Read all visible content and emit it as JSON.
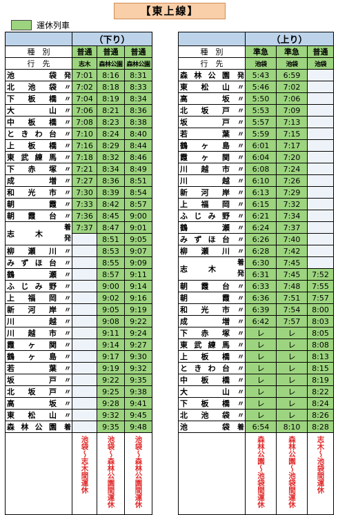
{
  "title": "【東上線】",
  "legend": {
    "label": "運休列車",
    "color": "#9dd47f"
  },
  "down": {
    "header": "（下り）",
    "row_labels": [
      "種　別",
      "行　先"
    ],
    "trains": [
      {
        "type": "普通",
        "dest": "志木"
      },
      {
        "type": "普通",
        "dest": "森林公園"
      },
      {
        "type": "普通",
        "dest": "森林公園"
      }
    ],
    "rows": [
      {
        "station": "池袋",
        "mark": "発",
        "times": [
          "7:01",
          "8:16",
          "8:31"
        ],
        "green": [
          true,
          true,
          true
        ]
      },
      {
        "station": "北池袋",
        "mark": "〃",
        "times": [
          "7:02",
          "8:18",
          "8:33"
        ],
        "green": [
          true,
          true,
          true
        ]
      },
      {
        "station": "下板橋",
        "mark": "〃",
        "times": [
          "7:04",
          "8:19",
          "8:34"
        ],
        "green": [
          true,
          true,
          true
        ]
      },
      {
        "station": "大山",
        "mark": "〃",
        "times": [
          "7:06",
          "8:21",
          "8:36"
        ],
        "green": [
          true,
          true,
          true
        ]
      },
      {
        "station": "中板橋",
        "mark": "〃",
        "times": [
          "7:08",
          "8:23",
          "8:38"
        ],
        "green": [
          true,
          true,
          true
        ]
      },
      {
        "station": "ときわ台",
        "mark": "〃",
        "times": [
          "7:10",
          "8:24",
          "8:40"
        ],
        "green": [
          true,
          true,
          true
        ]
      },
      {
        "station": "上板橋",
        "mark": "〃",
        "times": [
          "7:16",
          "8:29",
          "8:44"
        ],
        "green": [
          true,
          true,
          true
        ]
      },
      {
        "station": "東武練馬",
        "mark": "〃",
        "times": [
          "7:18",
          "8:32",
          "8:46"
        ],
        "green": [
          true,
          true,
          true
        ]
      },
      {
        "station": "下赤塚",
        "mark": "〃",
        "times": [
          "7:21",
          "8:34",
          "8:49"
        ],
        "green": [
          true,
          true,
          true
        ]
      },
      {
        "station": "成増",
        "mark": "〃",
        "times": [
          "7:27",
          "8:36",
          "8:51"
        ],
        "green": [
          true,
          true,
          true
        ]
      },
      {
        "station": "和光市",
        "mark": "〃",
        "times": [
          "7:30",
          "8:39",
          "8:54"
        ],
        "green": [
          true,
          true,
          true
        ]
      },
      {
        "station": "朝霞",
        "mark": "〃",
        "times": [
          "7:33",
          "8:42",
          "8:57"
        ],
        "green": [
          true,
          true,
          true
        ]
      },
      {
        "station": "朝霞台",
        "mark": "〃",
        "times": [
          "7:36",
          "8:45",
          "9:00"
        ],
        "green": [
          true,
          true,
          true
        ]
      }
    ],
    "shiki": {
      "station": "志木",
      "arr_mark": "着",
      "dep_mark": "発",
      "arr": [
        "7:37",
        "8:47",
        "9:01"
      ],
      "dep": [
        "",
        "8:51",
        "9:05"
      ]
    },
    "rows_after": [
      {
        "station": "柳瀬川",
        "mark": "〃",
        "times": [
          "",
          "8:53",
          "9:07"
        ],
        "green": [
          false,
          true,
          true
        ]
      },
      {
        "station": "みずほ台",
        "mark": "〃",
        "times": [
          "",
          "8:55",
          "9:09"
        ],
        "green": [
          false,
          true,
          true
        ]
      },
      {
        "station": "鶴瀬",
        "mark": "〃",
        "times": [
          "",
          "8:57",
          "9:11"
        ],
        "green": [
          false,
          true,
          true
        ]
      },
      {
        "station": "ふじみ野",
        "mark": "〃",
        "times": [
          "",
          "9:00",
          "9:14"
        ],
        "green": [
          false,
          true,
          true
        ]
      },
      {
        "station": "上福岡",
        "mark": "〃",
        "times": [
          "",
          "9:02",
          "9:16"
        ],
        "green": [
          false,
          true,
          true
        ]
      },
      {
        "station": "新河岸",
        "mark": "〃",
        "times": [
          "",
          "9:05",
          "9:19"
        ],
        "green": [
          false,
          true,
          true
        ]
      },
      {
        "station": "川越",
        "mark": "〃",
        "times": [
          "",
          "9:08",
          "9:22"
        ],
        "green": [
          false,
          true,
          true
        ]
      },
      {
        "station": "川越市",
        "mark": "〃",
        "times": [
          "",
          "9:11",
          "9:24"
        ],
        "green": [
          false,
          true,
          true
        ]
      },
      {
        "station": "霞ヶ関",
        "mark": "〃",
        "times": [
          "",
          "9:14",
          "9:27"
        ],
        "green": [
          false,
          true,
          true
        ]
      },
      {
        "station": "鶴ヶ島",
        "mark": "〃",
        "times": [
          "",
          "9:17",
          "9:30"
        ],
        "green": [
          false,
          true,
          true
        ]
      },
      {
        "station": "若葉",
        "mark": "〃",
        "times": [
          "",
          "9:19",
          "9:32"
        ],
        "green": [
          false,
          true,
          true
        ]
      },
      {
        "station": "坂戸",
        "mark": "〃",
        "times": [
          "",
          "9:22",
          "9:35"
        ],
        "green": [
          false,
          true,
          true
        ]
      },
      {
        "station": "北坂戸",
        "mark": "〃",
        "times": [
          "",
          "9:25",
          "9:38"
        ],
        "green": [
          false,
          true,
          true
        ]
      },
      {
        "station": "高坂",
        "mark": "〃",
        "times": [
          "",
          "9:28",
          "9:41"
        ],
        "green": [
          false,
          true,
          true
        ]
      },
      {
        "station": "東松山",
        "mark": "〃",
        "times": [
          "",
          "9:32",
          "9:45"
        ],
        "green": [
          false,
          true,
          true
        ]
      },
      {
        "station": "森林公園",
        "mark": "着",
        "times": [
          "",
          "9:35",
          "9:48"
        ],
        "green": [
          false,
          true,
          true
        ]
      }
    ],
    "notes": [
      "池袋～志木間運休",
      "池袋～森林公園間運休",
      "池袋～森林公園間運休"
    ]
  },
  "up": {
    "header": "（上り）",
    "row_labels": [
      "種　別",
      "行　先"
    ],
    "trains": [
      {
        "type": "準急",
        "dest": "池袋"
      },
      {
        "type": "準急",
        "dest": "池袋"
      },
      {
        "type": "普通",
        "dest": "池袋"
      }
    ],
    "rows": [
      {
        "station": "森林公園",
        "mark": "発",
        "times": [
          "5:43",
          "6:59",
          ""
        ],
        "green": [
          true,
          true,
          false
        ]
      },
      {
        "station": "東松山",
        "mark": "〃",
        "times": [
          "5:46",
          "7:02",
          ""
        ],
        "green": [
          true,
          true,
          false
        ]
      },
      {
        "station": "高坂",
        "mark": "〃",
        "times": [
          "5:50",
          "7:06",
          ""
        ],
        "green": [
          true,
          true,
          false
        ]
      },
      {
        "station": "北坂戸",
        "mark": "〃",
        "times": [
          "5:53",
          "7:09",
          ""
        ],
        "green": [
          true,
          true,
          false
        ]
      },
      {
        "station": "坂戸",
        "mark": "〃",
        "times": [
          "5:57",
          "7:13",
          ""
        ],
        "green": [
          true,
          true,
          false
        ]
      },
      {
        "station": "若葉",
        "mark": "〃",
        "times": [
          "5:59",
          "7:15",
          ""
        ],
        "green": [
          true,
          true,
          false
        ]
      },
      {
        "station": "鶴ヶ島",
        "mark": "〃",
        "times": [
          "6:01",
          "7:17",
          ""
        ],
        "green": [
          true,
          true,
          false
        ]
      },
      {
        "station": "霞ヶ関",
        "mark": "〃",
        "times": [
          "6:04",
          "7:20",
          ""
        ],
        "green": [
          true,
          true,
          false
        ]
      },
      {
        "station": "川越市",
        "mark": "〃",
        "times": [
          "6:08",
          "7:24",
          ""
        ],
        "green": [
          true,
          true,
          false
        ]
      },
      {
        "station": "川越",
        "mark": "〃",
        "times": [
          "6:10",
          "7:26",
          ""
        ],
        "green": [
          true,
          true,
          false
        ]
      },
      {
        "station": "新河岸",
        "mark": "〃",
        "times": [
          "6:13",
          "7:29",
          ""
        ],
        "green": [
          true,
          true,
          false
        ]
      },
      {
        "station": "上福岡",
        "mark": "〃",
        "times": [
          "6:15",
          "7:32",
          ""
        ],
        "green": [
          true,
          true,
          false
        ]
      },
      {
        "station": "ふじみ野",
        "mark": "〃",
        "times": [
          "6:21",
          "7:34",
          ""
        ],
        "green": [
          true,
          true,
          false
        ]
      },
      {
        "station": "鶴瀬",
        "mark": "〃",
        "times": [
          "6:24",
          "7:37",
          ""
        ],
        "green": [
          true,
          true,
          false
        ]
      },
      {
        "station": "みずほ台",
        "mark": "〃",
        "times": [
          "6:26",
          "7:40",
          ""
        ],
        "green": [
          true,
          true,
          false
        ]
      },
      {
        "station": "柳瀬川",
        "mark": "〃",
        "times": [
          "6:28",
          "7:42",
          ""
        ],
        "green": [
          true,
          true,
          false
        ]
      }
    ],
    "shiki": {
      "station": "志木",
      "arr_mark": "着",
      "dep_mark": "発",
      "arr": [
        "6:30",
        "7:45",
        ""
      ],
      "dep": [
        "6:31",
        "7:45",
        "7:52"
      ]
    },
    "rows_after": [
      {
        "station": "朝霞台",
        "mark": "〃",
        "times": [
          "6:33",
          "7:48",
          "7:55"
        ],
        "green": [
          true,
          true,
          true
        ]
      },
      {
        "station": "朝霞",
        "mark": "〃",
        "times": [
          "6:36",
          "7:51",
          "7:57"
        ],
        "green": [
          true,
          true,
          true
        ]
      },
      {
        "station": "和光市",
        "mark": "〃",
        "times": [
          "6:39",
          "7:54",
          "8:00"
        ],
        "green": [
          true,
          true,
          true
        ]
      },
      {
        "station": "成増",
        "mark": "〃",
        "times": [
          "6:42",
          "7:57",
          "8:03"
        ],
        "green": [
          true,
          true,
          true
        ]
      },
      {
        "station": "下赤塚",
        "mark": "〃",
        "times": [
          "レ",
          "レ",
          "8:05"
        ],
        "green": [
          true,
          true,
          true
        ]
      },
      {
        "station": "東武練馬",
        "mark": "〃",
        "times": [
          "レ",
          "レ",
          "8:08"
        ],
        "green": [
          true,
          true,
          true
        ]
      },
      {
        "station": "上板橋",
        "mark": "〃",
        "times": [
          "レ",
          "レ",
          "8:13"
        ],
        "green": [
          true,
          true,
          true
        ]
      },
      {
        "station": "ときわ台",
        "mark": "〃",
        "times": [
          "レ",
          "レ",
          "8:15"
        ],
        "green": [
          true,
          true,
          true
        ]
      },
      {
        "station": "中板橋",
        "mark": "〃",
        "times": [
          "レ",
          "レ",
          "8:19"
        ],
        "green": [
          true,
          true,
          true
        ]
      },
      {
        "station": "大山",
        "mark": "〃",
        "times": [
          "レ",
          "レ",
          "8:22"
        ],
        "green": [
          true,
          true,
          true
        ]
      },
      {
        "station": "下板橋",
        "mark": "〃",
        "times": [
          "レ",
          "レ",
          "8:24"
        ],
        "green": [
          true,
          true,
          true
        ]
      },
      {
        "station": "北池袋",
        "mark": "〃",
        "times": [
          "レ",
          "レ",
          "8:26"
        ],
        "green": [
          true,
          true,
          true
        ]
      },
      {
        "station": "池袋",
        "mark": "着",
        "times": [
          "6:54",
          "8:10",
          "8:28"
        ],
        "green": [
          true,
          true,
          true
        ]
      }
    ],
    "notes": [
      "森林公園～池袋間運休",
      "森林公園～池袋間運休",
      "志木～池袋間運休"
    ]
  }
}
